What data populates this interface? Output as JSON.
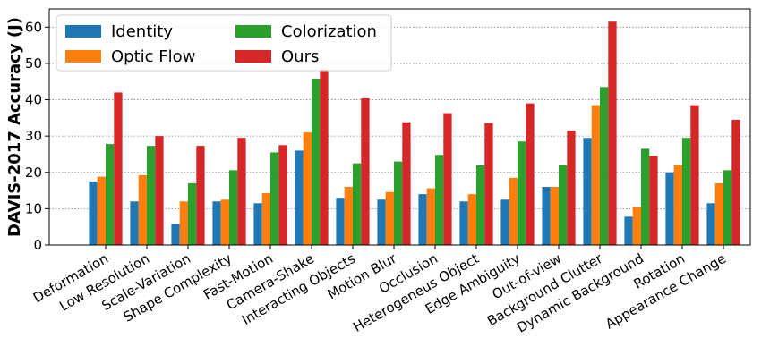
{
  "chart_data": {
    "type": "bar",
    "title": "",
    "xlabel": "",
    "ylabel": "DAVIS-2017 Accuracy (J)",
    "ylim": [
      0,
      65
    ],
    "yticks": [
      0,
      10,
      20,
      30,
      40,
      50,
      60
    ],
    "grid": "y-dotted",
    "legend_position": "top-left",
    "legend_columns": 2,
    "categories": [
      "Deformation",
      "Low Resolution",
      "Scale-Variation",
      "Shape Complexity",
      "Fast-Motion",
      "Camera-Shake",
      "Interacting Objects",
      "Motion Blur",
      "Occlusion",
      "Heterogeneus Object",
      "Edge Ambiguity",
      "Out-of-view",
      "Background Clutter",
      "Dynamic Background",
      "Rotation",
      "Appearance Change"
    ],
    "series": [
      {
        "name": "Identity",
        "color": "#1f77b4",
        "values": [
          17.5,
          12,
          5.8,
          12,
          11.5,
          26,
          13,
          12.5,
          14,
          12,
          12.5,
          16,
          29.5,
          7.8,
          20,
          11.5
        ]
      },
      {
        "name": "Optic Flow",
        "color": "#ff7f0e",
        "values": [
          18.8,
          19.2,
          12,
          12.5,
          14.3,
          31,
          16,
          14.6,
          15.6,
          14,
          18.5,
          16,
          38.5,
          10.4,
          22,
          17
        ]
      },
      {
        "name": "Colorization",
        "color": "#2ca02c",
        "values": [
          27.8,
          27.3,
          17,
          20.6,
          25.5,
          45.8,
          22.5,
          23,
          24.8,
          22,
          28.5,
          22,
          43.5,
          26.5,
          29.5,
          20.6
        ]
      },
      {
        "name": "Ours",
        "color": "#d62728",
        "values": [
          42,
          30,
          27.3,
          29.5,
          27.5,
          48.4,
          40.4,
          33.8,
          36.3,
          33.6,
          39,
          31.5,
          61.5,
          24.5,
          38.5,
          34.5
        ]
      }
    ]
  }
}
